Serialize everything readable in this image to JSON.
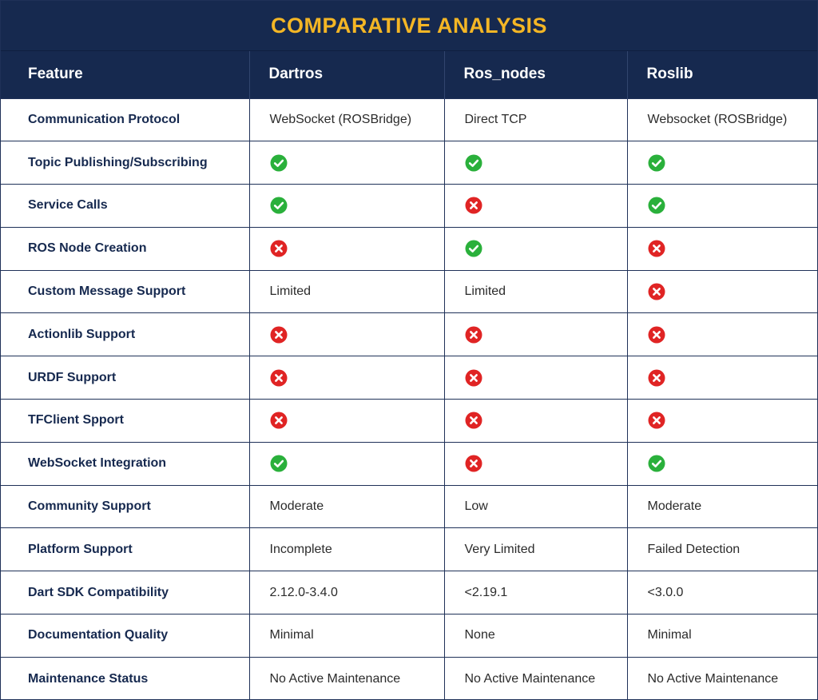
{
  "title": "COMPARATIVE ANALYSIS",
  "colors": {
    "navy": "#16294f",
    "gold": "#f4b625",
    "check": "#2ab03b",
    "cross": "#e02424"
  },
  "headers": [
    "Feature",
    "Dartros",
    "Ros_nodes",
    "Roslib"
  ],
  "rows": [
    {
      "feature": "Communication Protocol",
      "cells": [
        {
          "type": "text",
          "value": "WebSocket (ROSBridge)"
        },
        {
          "type": "text",
          "value": "Direct TCP"
        },
        {
          "type": "text",
          "value": "Websocket (ROSBridge)"
        }
      ]
    },
    {
      "feature": "Topic Publishing/Subscribing",
      "cells": [
        {
          "type": "icon",
          "icon": "check-icon"
        },
        {
          "type": "icon",
          "icon": "check-icon"
        },
        {
          "type": "icon",
          "icon": "check-icon"
        }
      ]
    },
    {
      "feature": "Service Calls",
      "cells": [
        {
          "type": "icon",
          "icon": "check-icon"
        },
        {
          "type": "icon",
          "icon": "cross-icon"
        },
        {
          "type": "icon",
          "icon": "check-icon"
        }
      ]
    },
    {
      "feature": "ROS Node Creation",
      "cells": [
        {
          "type": "icon",
          "icon": "cross-icon"
        },
        {
          "type": "icon",
          "icon": "check-icon"
        },
        {
          "type": "icon",
          "icon": "cross-icon"
        }
      ]
    },
    {
      "feature": "Custom Message Support",
      "cells": [
        {
          "type": "text",
          "value": "Limited"
        },
        {
          "type": "text",
          "value": "Limited"
        },
        {
          "type": "icon",
          "icon": "cross-icon"
        }
      ]
    },
    {
      "feature": "Actionlib Support",
      "cells": [
        {
          "type": "icon",
          "icon": "cross-icon"
        },
        {
          "type": "icon",
          "icon": "cross-icon"
        },
        {
          "type": "icon",
          "icon": "cross-icon"
        }
      ]
    },
    {
      "feature": "URDF Support",
      "cells": [
        {
          "type": "icon",
          "icon": "cross-icon"
        },
        {
          "type": "icon",
          "icon": "cross-icon"
        },
        {
          "type": "icon",
          "icon": "cross-icon"
        }
      ]
    },
    {
      "feature": "TFClient Spport",
      "cells": [
        {
          "type": "icon",
          "icon": "cross-icon"
        },
        {
          "type": "icon",
          "icon": "cross-icon"
        },
        {
          "type": "icon",
          "icon": "cross-icon"
        }
      ]
    },
    {
      "feature": "WebSocket Integration",
      "cells": [
        {
          "type": "icon",
          "icon": "check-icon"
        },
        {
          "type": "icon",
          "icon": "cross-icon"
        },
        {
          "type": "icon",
          "icon": "check-icon"
        }
      ]
    },
    {
      "feature": "Community Support",
      "cells": [
        {
          "type": "text",
          "value": "Moderate"
        },
        {
          "type": "text",
          "value": "Low"
        },
        {
          "type": "text",
          "value": "Moderate"
        }
      ]
    },
    {
      "feature": "Platform Support",
      "cells": [
        {
          "type": "text",
          "value": "Incomplete"
        },
        {
          "type": "text",
          "value": "Very Limited"
        },
        {
          "type": "text",
          "value": "Failed Detection"
        }
      ]
    },
    {
      "feature": "Dart SDK Compatibility",
      "cells": [
        {
          "type": "text",
          "value": "2.12.0-3.4.0"
        },
        {
          "type": "text",
          "value": "<2.19.1"
        },
        {
          "type": "text",
          "value": "<3.0.0"
        }
      ]
    },
    {
      "feature": "Documentation Quality",
      "cells": [
        {
          "type": "text",
          "value": "Minimal"
        },
        {
          "type": "text",
          "value": "None"
        },
        {
          "type": "text",
          "value": "Minimal"
        }
      ]
    },
    {
      "feature": "Maintenance Status",
      "cells": [
        {
          "type": "text",
          "value": "No Active Maintenance"
        },
        {
          "type": "text",
          "value": "No Active Maintenance"
        },
        {
          "type": "text",
          "value": "No Active Maintenance"
        }
      ]
    }
  ]
}
